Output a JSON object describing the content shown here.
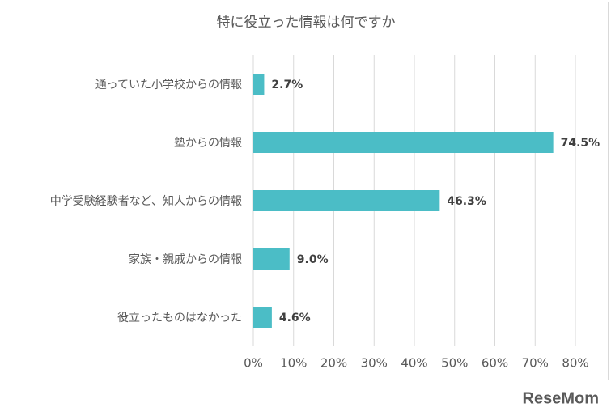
{
  "chart_data": {
    "type": "hbar",
    "title": "特に役立った情報は何ですか",
    "categories": [
      "通っていた小学校からの情報",
      "塾からの情報",
      "中学受験経験者など、知人からの情報",
      "家族・親戚からの情報",
      "役立ったものはなかった"
    ],
    "values": [
      2.7,
      74.5,
      46.3,
      9.0,
      4.6
    ],
    "value_labels": [
      "2.7%",
      "74.5%",
      "46.3%",
      "9.0%",
      "4.6%"
    ],
    "color": "#4bbdc6",
    "xlim": [
      0,
      80
    ],
    "xticks": [
      {
        "value": 0,
        "label": "0%"
      },
      {
        "value": 10,
        "label": "10%"
      },
      {
        "value": 20,
        "label": "20%"
      },
      {
        "value": 30,
        "label": "30%"
      },
      {
        "value": 40,
        "label": "40%"
      },
      {
        "value": 50,
        "label": "50%"
      },
      {
        "value": 60,
        "label": "60%"
      },
      {
        "value": 70,
        "label": "70%"
      },
      {
        "value": 80,
        "label": "80%"
      }
    ],
    "grid": true
  },
  "watermark": "ReseMom"
}
